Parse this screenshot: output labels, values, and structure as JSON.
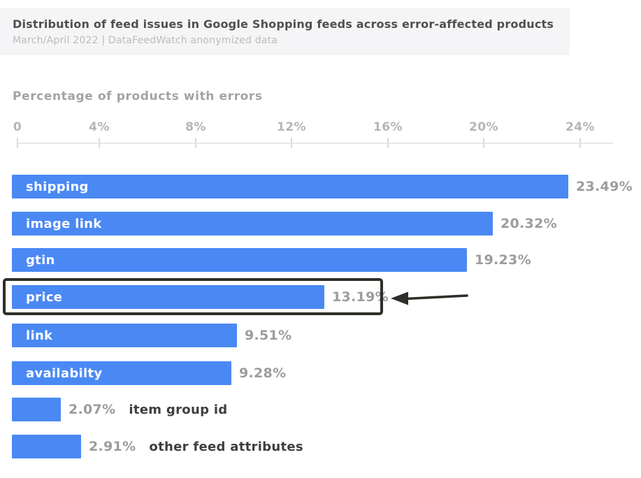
{
  "header": {
    "title": "Distribution of feed issues in Google Shopping feeds across error-affected products",
    "subtitle": "March/April 2022 | DataFeedWatch anonymized data"
  },
  "section_title": "Percentage of products with errors",
  "chart_data": {
    "type": "bar",
    "orientation": "horizontal",
    "title": "Percentage of products with errors",
    "xlabel": "Percentage of products with errors",
    "xlim": [
      0,
      24
    ],
    "x_ticks": [
      "0",
      "4%",
      "8%",
      "12%",
      "16%",
      "20%",
      "24%"
    ],
    "grid": false,
    "categories": [
      "shipping",
      "image link",
      "gtin",
      "price",
      "link",
      "availabilty",
      "item group id",
      "other feed attributes"
    ],
    "values": [
      23.49,
      20.32,
      19.23,
      13.19,
      9.51,
      9.28,
      2.07,
      2.91
    ],
    "items": [
      {
        "label": "shipping",
        "value": 23.49,
        "display": "23.49%",
        "label_position": "inside"
      },
      {
        "label": "image link",
        "value": 20.32,
        "display": "20.32%",
        "label_position": "inside"
      },
      {
        "label": "gtin",
        "value": 19.23,
        "display": "19.23%",
        "label_position": "inside"
      },
      {
        "label": "price",
        "value": 13.19,
        "display": "13.19%",
        "label_position": "inside",
        "highlighted": true
      },
      {
        "label": "link",
        "value": 9.51,
        "display": "9.51%",
        "label_position": "inside"
      },
      {
        "label": "availabilty",
        "value": 9.28,
        "display": "9.28%",
        "label_position": "inside"
      },
      {
        "label": "item group id",
        "value": 2.07,
        "display": "2.07%",
        "label_position": "outside"
      },
      {
        "label": "other feed attributes",
        "value": 2.91,
        "display": "2.91%",
        "label_position": "outside"
      }
    ],
    "annotation": {
      "target": "price",
      "shape": "box-with-left-pointing-arrow"
    }
  },
  "colors": {
    "bar": "#4a89f4",
    "bar_label": "#ffffff",
    "value_label": "#9c9c9c",
    "outside_label": "#3e3e3e",
    "highlight_box": "#2f2f29",
    "arrow": "#2f2f29",
    "header_background": "#f5f5f7",
    "title_text": "#4f4f4f",
    "subtitle_text": "#bcbcbc",
    "axis_text": "#b5b5b5",
    "axis_line": "#e8e8e8"
  }
}
